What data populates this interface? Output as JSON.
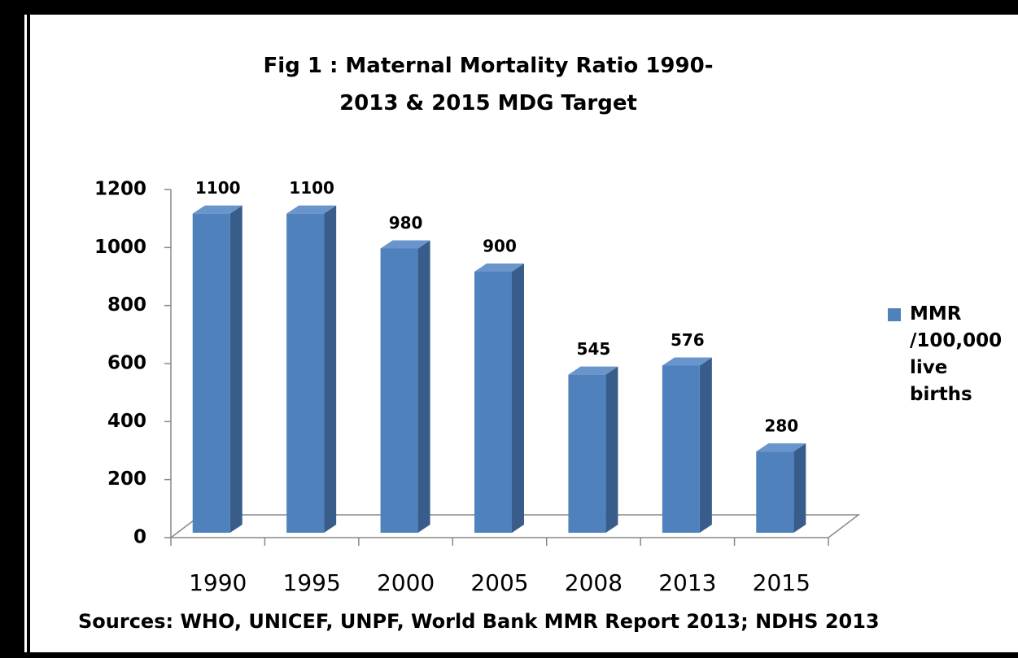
{
  "chart_data": {
    "type": "bar3d",
    "title": "Fig 1 : Maternal  Mortality Ratio 1990-2013 &  2015 MDG Target",
    "categories": [
      "1990",
      "1995",
      "2000",
      "2005",
      "2008",
      "2013",
      "2015"
    ],
    "series": [
      {
        "name": "MMR /100,000 live births",
        "color": "#4f81bd",
        "values": [
          1100,
          1100,
          980,
          900,
          545,
          576,
          280
        ]
      }
    ],
    "ylim": [
      0,
      1200
    ],
    "yticks": [
      0,
      200,
      400,
      600,
      800,
      1000,
      1200
    ],
    "data_labels": true,
    "legend": "right",
    "source": "Sources:  WHO, UNICEF, UNPF, World Bank MMR Report 2013;  NDHS 2013"
  }
}
